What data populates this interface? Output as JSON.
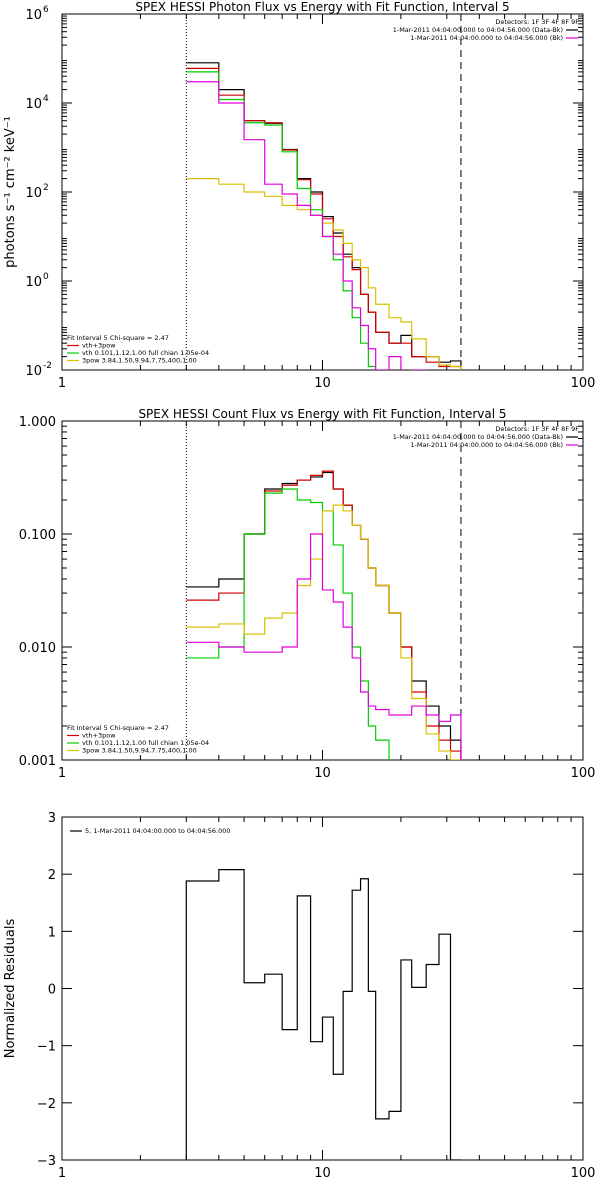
{
  "chart_data": [
    {
      "type": "line",
      "title": "SPEX HESSI Photon Flux vs Energy with Fit Function, Interval 5",
      "ylabel": "photons s⁻¹ cm⁻² keV⁻¹",
      "xlabel": "",
      "xscale": "log",
      "yscale": "log",
      "xlim": [
        1,
        100
      ],
      "ylim": [
        0.01,
        1000000
      ],
      "xticks": [
        {
          "v": 1,
          "label": "1"
        },
        {
          "v": 10,
          "label": "10"
        },
        {
          "v": 100,
          "label": "100"
        }
      ],
      "yticks": [
        {
          "v": 0.01,
          "label": "10",
          "sup": "-2"
        },
        {
          "v": 1,
          "label": "10",
          "sup": "0"
        },
        {
          "v": 100,
          "label": "10",
          "sup": "2"
        },
        {
          "v": 10000,
          "label": "10",
          "sup": "4"
        },
        {
          "v": 1000000,
          "label": "10",
          "sup": "6"
        }
      ],
      "vlines": [
        {
          "x": 3,
          "style": "dotted"
        },
        {
          "x": 34,
          "style": "dashed"
        }
      ],
      "legend_top_right": {
        "header": "Detectors: 1F 3F 4F 8F 9F",
        "entries": [
          {
            "text": "1-Mar-2011 04:04:00.000 to 04:04:56.000 (Data-Bk)",
            "color": "#000000"
          },
          {
            "text": "1-Mar-2011 04:04:00.000 to 04:04:56.000 (Bk)",
            "color": "#e000e0"
          }
        ]
      },
      "legend_bottom_left": {
        "header": "Fit Interval 5   Chi-square = 2.47",
        "entries": [
          {
            "text": "vth+3pow",
            "color": "#d00000"
          },
          {
            "text": "vth 0.101,1.12,1.00  full chian 1.05e-04",
            "color": "#00cc00"
          },
          {
            "text": "3pow  3.84,1.50,9.94,7.75,400,1.00",
            "color": "#d8c000"
          }
        ]
      },
      "edges": [
        3,
        4,
        5,
        6,
        7,
        8,
        9,
        10,
        11,
        12,
        13,
        14,
        15,
        16,
        18,
        20,
        22,
        25,
        28,
        31,
        34
      ],
      "series": [
        {
          "color": "#000000",
          "values": [
            80000,
            20000,
            4000,
            3500,
            900,
            200,
            100,
            28,
            12,
            4,
            2,
            0.5,
            0.2,
            0.07,
            0.04,
            0.06,
            0.02,
            0.02,
            0.015,
            0.016
          ]
        },
        {
          "color": "#d00000",
          "values": [
            60000,
            15000,
            4000,
            3600,
            880,
            190,
            90,
            25,
            10,
            3.5,
            1.8,
            0.5,
            0.2,
            0.07,
            0.04,
            0.04,
            0.02,
            0.015,
            0.012,
            0.012
          ]
        },
        {
          "color": "#00cc00",
          "values": [
            50000,
            12000,
            3600,
            3200,
            800,
            120,
            40,
            10,
            3,
            0.6,
            0.15,
            0.04,
            0.012,
            0.005
          ]
        },
        {
          "color": "#d8c000",
          "values": [
            200,
            150,
            100,
            80,
            50,
            40,
            30,
            20,
            14,
            7,
            3,
            2,
            0.7,
            0.3,
            0.15,
            0.12,
            0.05,
            0.02,
            0.013,
            0.012
          ]
        },
        {
          "color": "#e000e0",
          "values": [
            30000,
            10000,
            1500,
            150,
            90,
            50,
            30,
            10,
            4,
            1,
            0.25,
            0.1,
            0.03,
            0.01,
            0.02,
            0.009,
            0.01
          ]
        }
      ]
    },
    {
      "type": "line",
      "title": "SPEX HESSI Count Flux vs Energy with Fit Function, Interval 5",
      "ylabel": "",
      "xlabel": "",
      "xscale": "log",
      "yscale": "log",
      "xlim": [
        1,
        100
      ],
      "ylim": [
        0.001,
        1
      ],
      "xticks": [
        {
          "v": 1,
          "label": "1"
        },
        {
          "v": 10,
          "label": "10"
        },
        {
          "v": 100,
          "label": "100"
        }
      ],
      "yticks": [
        {
          "v": 0.001,
          "label": "0.001"
        },
        {
          "v": 0.01,
          "label": "0.010"
        },
        {
          "v": 0.1,
          "label": "0.100"
        },
        {
          "v": 1,
          "label": "1.000"
        }
      ],
      "vlines": [
        {
          "x": 3,
          "style": "dotted"
        },
        {
          "x": 34,
          "style": "dashed"
        }
      ],
      "legend_top_right": {
        "header": "Detectors: 1F 3F 4F 8F 9F",
        "entries": [
          {
            "text": "1-Mar-2011 04:04:00.000 to 04:04:56.000 (Data-Bk)",
            "color": "#000000"
          },
          {
            "text": "1-Mar-2011 04:04:00.000 to 04:04:56.000 (Bk)",
            "color": "#e000e0"
          }
        ]
      },
      "legend_bottom_left": {
        "header": "Fit Interval 5   Chi-square = 2.47",
        "entries": [
          {
            "text": "vth+3pow",
            "color": "#d00000"
          },
          {
            "text": "vth 0.101,1.12,1.00  full chian 1.05e-04",
            "color": "#00cc00"
          },
          {
            "text": "3pow  3.84,1.50,9.94,7.75,400,1.00",
            "color": "#d8c000"
          }
        ]
      },
      "edges": [
        3,
        4,
        5,
        6,
        7,
        8,
        9,
        10,
        11,
        12,
        13,
        14,
        15,
        16,
        18,
        20,
        22,
        25,
        28,
        31,
        34
      ],
      "series": [
        {
          "color": "#000000",
          "values": [
            0.034,
            0.04,
            0.1,
            0.25,
            0.28,
            0.3,
            0.32,
            0.35,
            0.25,
            0.18,
            0.12,
            0.09,
            0.05,
            0.035,
            0.02,
            0.01,
            0.005,
            0.003,
            0.002,
            0.0015
          ]
        },
        {
          "color": "#d00000",
          "values": [
            0.026,
            0.03,
            0.1,
            0.24,
            0.27,
            0.3,
            0.33,
            0.36,
            0.25,
            0.18,
            0.12,
            0.09,
            0.05,
            0.035,
            0.02,
            0.01,
            0.004,
            0.002,
            0.0015,
            0.0012
          ]
        },
        {
          "color": "#00cc00",
          "values": [
            0.008,
            0.01,
            0.1,
            0.23,
            0.25,
            0.2,
            0.19,
            0.16,
            0.08,
            0.03,
            0.01,
            0.005,
            0.002,
            0.0015
          ]
        },
        {
          "color": "#d8c000",
          "values": [
            0.015,
            0.016,
            0.013,
            0.018,
            0.02,
            0.035,
            0.06,
            0.16,
            0.18,
            0.16,
            0.12,
            0.09,
            0.05,
            0.035,
            0.02,
            0.008,
            0.0035,
            0.0017,
            0.0012,
            0.001
          ]
        },
        {
          "color": "#e000e0",
          "values": [
            0.011,
            0.01,
            0.009,
            0.009,
            0.01,
            0.04,
            0.1,
            0.032,
            0.025,
            0.015,
            0.008,
            0.004,
            0.003,
            0.0028,
            0.0025,
            0.0025,
            0.003,
            0.0025,
            0.0022,
            0.0025
          ]
        }
      ]
    },
    {
      "type": "line",
      "title": "",
      "ylabel": "Normalized Residuals",
      "xlabel": "",
      "xscale": "log",
      "yscale": "linear",
      "xlim": [
        1,
        100
      ],
      "ylim": [
        -3,
        3
      ],
      "xticks": [
        {
          "v": 1,
          "label": "1"
        },
        {
          "v": 10,
          "label": "10"
        },
        {
          "v": 100,
          "label": "100"
        }
      ],
      "yticks": [
        {
          "v": -3,
          "label": "−3"
        },
        {
          "v": -2,
          "label": "−2"
        },
        {
          "v": -1,
          "label": "−1"
        },
        {
          "v": 0,
          "label": "0"
        },
        {
          "v": 1,
          "label": "1"
        },
        {
          "v": 2,
          "label": "2"
        },
        {
          "v": 3,
          "label": "3"
        }
      ],
      "vlines": [],
      "legend_top_left": {
        "entries": [
          {
            "text": "5,  1-Mar-2011 04:04:00.000 to 04:04:56.000",
            "color": "#000000"
          }
        ]
      },
      "edges": [
        3,
        4,
        5,
        6,
        7,
        8,
        9,
        10,
        11,
        12,
        13,
        14,
        15,
        16,
        18,
        20,
        22,
        25,
        28,
        31,
        34
      ],
      "series": [
        {
          "color": "#000000",
          "values": [
            1.88,
            2.08,
            0.1,
            0.25,
            -0.72,
            1.62,
            -0.93,
            -0.5,
            -1.5,
            -0.05,
            1.72,
            1.92,
            -0.05,
            -2.28,
            -2.15,
            0.5,
            0.02,
            0.42,
            0.95,
            -3
          ],
          "drop_edges": true
        }
      ]
    }
  ]
}
